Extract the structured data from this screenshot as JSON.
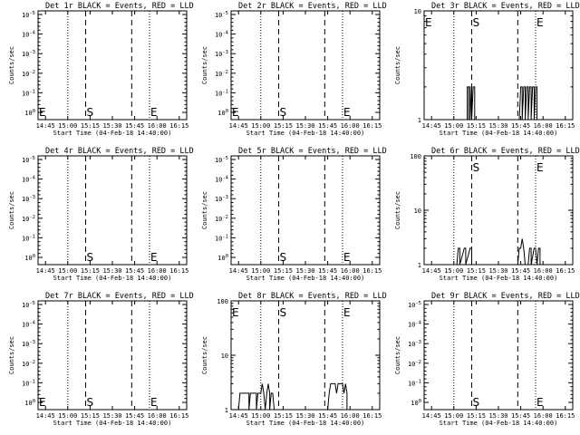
{
  "chart_data": [
    {
      "type": "line",
      "title": "Det 1r BLACK = Events, RED = LLD",
      "xlabel": "Start Time (04-Feb-18 14:40:00)",
      "ylabel": "Counts/sec",
      "x_ticks": [
        "14:45",
        "15:00",
        "15:15",
        "15:30",
        "15:45",
        "16:00",
        "16:15"
      ],
      "x_range": [
        "14:40",
        "16:20"
      ],
      "y_scale": "log",
      "y_ticks": [
        "10^0",
        "10^-1",
        "10^-2",
        "10^-3",
        "10^-4",
        "10^-5"
      ],
      "y_order": "descending",
      "markers": [
        {
          "label": "E",
          "time": "14:40"
        },
        {
          "label": "S",
          "time": "15:12"
        },
        {
          "label": "E",
          "time": "15:55"
        }
      ],
      "dotted_lines": [
        "15:00",
        "15:55"
      ],
      "dashed_lines": [
        "15:12",
        "15:43"
      ],
      "series": []
    },
    {
      "type": "line",
      "title": "Det 2r BLACK = Events, RED = LLD",
      "xlabel": "Start Time (04-Feb-18 14:40:00)",
      "ylabel": "Counts/sec",
      "x_ticks": [
        "14:45",
        "15:00",
        "15:15",
        "15:30",
        "15:45",
        "16:00",
        "16:15"
      ],
      "x_range": [
        "14:40",
        "16:20"
      ],
      "y_scale": "log",
      "y_ticks": [
        "10^0",
        "10^-1",
        "10^-2",
        "10^-3",
        "10^-4",
        "10^-5"
      ],
      "y_order": "descending",
      "markers": [
        {
          "label": "E",
          "time": "14:40"
        },
        {
          "label": "S",
          "time": "15:12"
        },
        {
          "label": "E",
          "time": "15:55"
        }
      ],
      "dotted_lines": [
        "15:00",
        "15:55"
      ],
      "dashed_lines": [
        "15:12",
        "15:43"
      ],
      "series": []
    },
    {
      "type": "line",
      "title": "Det 3r BLACK = Events, RED = LLD",
      "xlabel": "Start Time (04-Feb-18 14:40:00)",
      "ylabel": "Counts/sec",
      "x_ticks": [
        "14:45",
        "15:00",
        "15:15",
        "15:30",
        "15:45",
        "16:00",
        "16:15"
      ],
      "x_range": [
        "14:40",
        "16:20"
      ],
      "y_scale": "log",
      "y_ticks": [
        "10",
        "1"
      ],
      "y_range": [
        1,
        10
      ],
      "markers": [
        {
          "label": "E",
          "time": "14:40"
        },
        {
          "label": "S",
          "time": "15:12"
        },
        {
          "label": "E",
          "time": "15:55"
        }
      ],
      "dotted_lines": [
        "15:00",
        "15:55"
      ],
      "dashed_lines": [
        "15:12",
        "15:43"
      ],
      "series": [
        {
          "points": [
            [
              "15:09",
              1
            ],
            [
              "15:09",
              2
            ],
            [
              "15:10",
              2
            ],
            [
              "15:10",
              1
            ],
            [
              "15:10",
              2
            ],
            [
              "15:11",
              2
            ],
            [
              "15:11",
              1
            ],
            [
              "15:12",
              2
            ],
            [
              "15:12",
              1
            ],
            [
              "15:13",
              2
            ],
            [
              "15:14",
              2
            ],
            [
              "15:14",
              1
            ],
            [
              "15:44",
              1
            ],
            [
              "15:45",
              2
            ],
            [
              "15:46",
              2
            ],
            [
              "15:46",
              1
            ],
            [
              "15:47",
              2
            ],
            [
              "15:48",
              2
            ],
            [
              "15:48",
              1
            ],
            [
              "15:49",
              2
            ],
            [
              "15:50",
              2
            ],
            [
              "15:50",
              1
            ],
            [
              "15:51",
              2
            ],
            [
              "15:52",
              2
            ],
            [
              "15:52",
              1
            ],
            [
              "15:53",
              2
            ],
            [
              "15:54",
              2
            ],
            [
              "15:54",
              1
            ],
            [
              "15:55",
              2
            ],
            [
              "15:56",
              2
            ],
            [
              "15:56",
              1
            ]
          ]
        }
      ]
    },
    {
      "type": "line",
      "title": "Det 4r BLACK = Events, RED = LLD",
      "xlabel": "Start Time (04-Feb-18 14:40:00)",
      "ylabel": "Counts/sec",
      "x_ticks": [
        "14:45",
        "15:00",
        "15:15",
        "15:30",
        "15:45",
        "16:00",
        "16:15"
      ],
      "x_range": [
        "14:40",
        "16:20"
      ],
      "y_scale": "log",
      "y_ticks": [
        "10^0",
        "10^-1",
        "10^-2",
        "10^-3",
        "10^-4",
        "10^-5"
      ],
      "y_order": "descending",
      "markers": [
        {
          "label": "S",
          "time": "15:12"
        },
        {
          "label": "E",
          "time": "15:55"
        }
      ],
      "dotted_lines": [
        "15:00",
        "15:55"
      ],
      "dashed_lines": [
        "15:12",
        "15:43"
      ],
      "series": []
    },
    {
      "type": "line",
      "title": "Det 5r BLACK = Events, RED = LLD",
      "xlabel": "Start Time (04-Feb-18 14:40:00)",
      "ylabel": "Counts/sec",
      "x_ticks": [
        "14:45",
        "15:00",
        "15:15",
        "15:30",
        "15:45",
        "16:00",
        "16:15"
      ],
      "x_range": [
        "14:40",
        "16:20"
      ],
      "y_scale": "log",
      "y_ticks": [
        "10^0",
        "10^-1",
        "10^-2",
        "10^-3",
        "10^-4",
        "10^-5"
      ],
      "y_order": "descending",
      "markers": [
        {
          "label": "S",
          "time": "15:12"
        },
        {
          "label": "E",
          "time": "15:55"
        }
      ],
      "dotted_lines": [
        "15:00",
        "15:55"
      ],
      "dashed_lines": [
        "15:12",
        "15:43"
      ],
      "series": []
    },
    {
      "type": "line",
      "title": "Det 6r BLACK = Events, RED = LLD",
      "xlabel": "Start Time (04-Feb-18 14:40:00)",
      "ylabel": "Counts/sec",
      "x_ticks": [
        "14:45",
        "15:00",
        "15:15",
        "15:30",
        "15:45",
        "16:00",
        "16:15"
      ],
      "x_range": [
        "14:40",
        "16:20"
      ],
      "y_scale": "log",
      "y_ticks": [
        "100",
        "10",
        "1"
      ],
      "y_range": [
        1,
        100
      ],
      "markers": [
        {
          "label": "S",
          "time": "15:12"
        },
        {
          "label": "E",
          "time": "15:55"
        }
      ],
      "dotted_lines": [
        "15:00",
        "15:55"
      ],
      "dashed_lines": [
        "15:12",
        "15:43"
      ],
      "series": [
        {
          "points": [
            [
              "15:02",
              1
            ],
            [
              "15:03",
              2
            ],
            [
              "15:04",
              2
            ],
            [
              "15:04",
              1
            ],
            [
              "15:07",
              2
            ],
            [
              "15:08",
              2
            ],
            [
              "15:08",
              1
            ],
            [
              "15:11",
              2
            ],
            [
              "15:12",
              2
            ],
            [
              "15:12",
              1
            ],
            [
              "15:43",
              1
            ],
            [
              "15:44",
              2
            ],
            [
              "15:45",
              2
            ],
            [
              "15:46",
              3
            ],
            [
              "15:47",
              2
            ],
            [
              "15:48",
              1
            ],
            [
              "15:50",
              1
            ],
            [
              "15:51",
              2
            ],
            [
              "15:52",
              2
            ],
            [
              "15:52",
              1
            ],
            [
              "15:54",
              2
            ],
            [
              "15:55",
              2
            ],
            [
              "15:56",
              1
            ],
            [
              "15:57",
              2
            ],
            [
              "15:58",
              2
            ],
            [
              "15:58",
              1
            ]
          ]
        }
      ]
    },
    {
      "type": "line",
      "title": "Det 7r BLACK = Events, RED = LLD",
      "xlabel": "Start Time (04-Feb-18 14:40:00)",
      "ylabel": "Counts/sec",
      "x_ticks": [
        "14:45",
        "15:00",
        "15:15",
        "15:30",
        "15:45",
        "16:00",
        "16:15"
      ],
      "x_range": [
        "14:40",
        "16:20"
      ],
      "y_scale": "log",
      "y_ticks": [
        "10^0",
        "10^-1",
        "10^-2",
        "10^-3",
        "10^-4",
        "10^-5"
      ],
      "y_order": "descending",
      "markers": [
        {
          "label": "E",
          "time": "14:40"
        },
        {
          "label": "S",
          "time": "15:12"
        },
        {
          "label": "E",
          "time": "15:55"
        }
      ],
      "dotted_lines": [
        "15:00",
        "15:55"
      ],
      "dashed_lines": [
        "15:12",
        "15:43"
      ],
      "series": []
    },
    {
      "type": "line",
      "title": "Det 8r BLACK = Events, RED = LLD",
      "xlabel": "Start Time (04-Feb-18 14:40:00)",
      "ylabel": "Counts/sec",
      "x_ticks": [
        "14:45",
        "15:00",
        "15:15",
        "15:30",
        "15:45",
        "16:00",
        "16:15"
      ],
      "x_range": [
        "14:40",
        "16:20"
      ],
      "y_scale": "log",
      "y_ticks": [
        "100",
        "10",
        "1"
      ],
      "y_range": [
        1,
        100
      ],
      "markers": [
        {
          "label": "E",
          "time": "14:40"
        },
        {
          "label": "S",
          "time": "15:12"
        },
        {
          "label": "E",
          "time": "15:55"
        }
      ],
      "dotted_lines": [
        "15:00",
        "15:55"
      ],
      "dashed_lines": [
        "15:12",
        "15:43"
      ],
      "series": [
        {
          "points": [
            [
              "14:45",
              1
            ],
            [
              "14:46",
              2
            ],
            [
              "14:52",
              2
            ],
            [
              "14:52",
              1
            ],
            [
              "14:53",
              2
            ],
            [
              "14:57",
              2
            ],
            [
              "14:57",
              1
            ],
            [
              "14:58",
              2
            ],
            [
              "15:00",
              2
            ],
            [
              "15:01",
              3
            ],
            [
              "15:02",
              2
            ],
            [
              "15:03",
              1
            ],
            [
              "15:04",
              2
            ],
            [
              "15:05",
              3
            ],
            [
              "15:06",
              2
            ],
            [
              "15:06",
              1
            ],
            [
              "15:07",
              2
            ],
            [
              "15:08",
              2
            ],
            [
              "15:09",
              1
            ],
            [
              "15:45",
              1
            ],
            [
              "15:46",
              2
            ],
            [
              "15:47",
              3
            ],
            [
              "15:50",
              3
            ],
            [
              "15:51",
              2
            ],
            [
              "15:52",
              3
            ],
            [
              "15:55",
              3
            ],
            [
              "15:56",
              2
            ],
            [
              "15:57",
              3
            ],
            [
              "15:58",
              2
            ],
            [
              "15:58",
              1
            ]
          ]
        }
      ]
    },
    {
      "type": "line",
      "title": "Det 9r BLACK = Events, RED = LLD",
      "xlabel": "Start Time (04-Feb-18 14:40:00)",
      "ylabel": "Counts/sec",
      "x_ticks": [
        "14:45",
        "15:00",
        "15:15",
        "15:30",
        "15:45",
        "16:00",
        "16:15"
      ],
      "x_range": [
        "14:40",
        "16:20"
      ],
      "y_scale": "log",
      "y_ticks": [
        "10^0",
        "10^-1",
        "10^-2",
        "10^-3",
        "10^-4",
        "10^-5"
      ],
      "y_order": "descending",
      "markers": [
        {
          "label": "S",
          "time": "15:12"
        },
        {
          "label": "E",
          "time": "15:55"
        }
      ],
      "dotted_lines": [
        "15:00",
        "15:55"
      ],
      "dashed_lines": [
        "15:12",
        "15:43"
      ],
      "series": []
    }
  ]
}
